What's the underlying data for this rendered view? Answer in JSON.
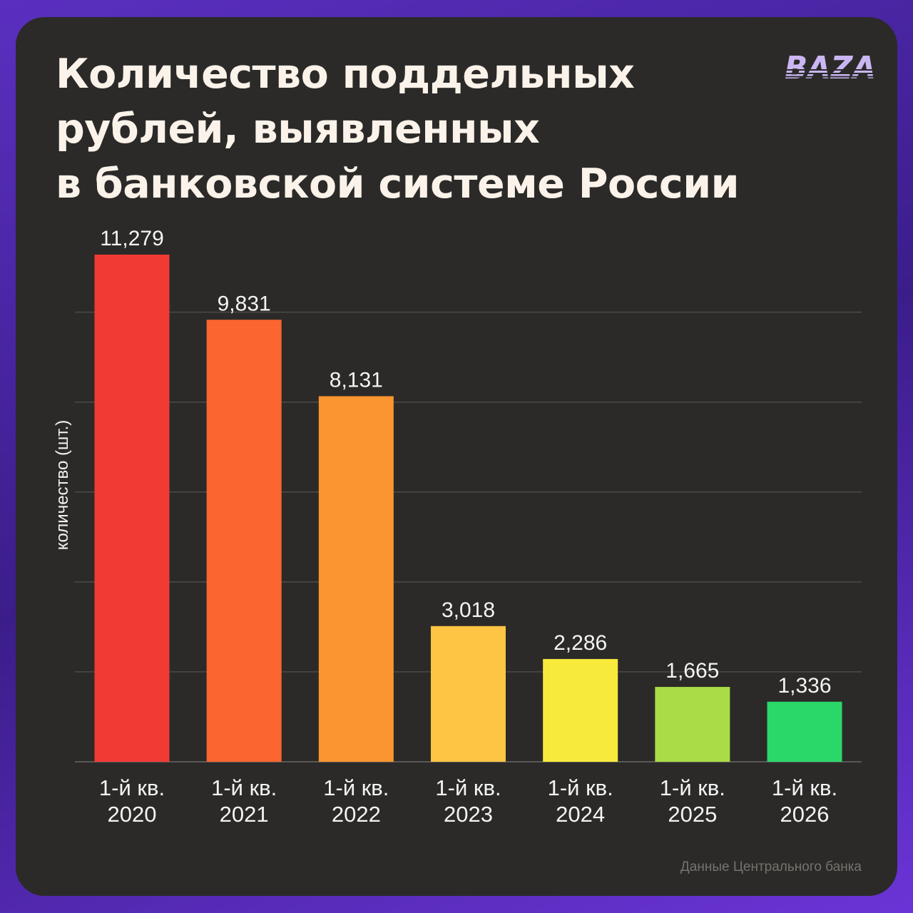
{
  "title_lines": [
    "Количество поддельных",
    "рублей, выявленных",
    "в банковской системе России"
  ],
  "logo_text": "BAZA",
  "source": "Данные Центрального банка",
  "colors": {
    "background": "#2b2a29",
    "frame": "#5a2fc0",
    "logo": "#c9b6f2"
  },
  "chart_data": {
    "type": "bar",
    "title": "Количество поддельных рублей, выявленных в банковской системе России",
    "ylabel": "количество (шт.)",
    "xlabel": "",
    "categories": [
      [
        "1-й кв.",
        "2020"
      ],
      [
        "1-й кв.",
        "2021"
      ],
      [
        "1-й кв.",
        "2022"
      ],
      [
        "1-й кв.",
        "2023"
      ],
      [
        "1-й кв.",
        "2024"
      ],
      [
        "1-й кв.",
        "2025"
      ],
      [
        "1-й кв.",
        "2026"
      ]
    ],
    "values": [
      11279,
      9831,
      8131,
      3018,
      2286,
      1665,
      1336
    ],
    "value_labels": [
      "11,279",
      "9,831",
      "8,131",
      "3,018",
      "2,286",
      "1,665",
      "1,336"
    ],
    "bar_colors": [
      "#f23a35",
      "#fb6530",
      "#fb9530",
      "#fec444",
      "#f8ea3c",
      "#a9dc47",
      "#2ad86a"
    ],
    "ylim": [
      0,
      12000
    ],
    "gridlines": [
      2000,
      4000,
      6000,
      8000,
      10000
    ],
    "grid": true,
    "y_tick_labels_shown": false,
    "legend": "none"
  }
}
